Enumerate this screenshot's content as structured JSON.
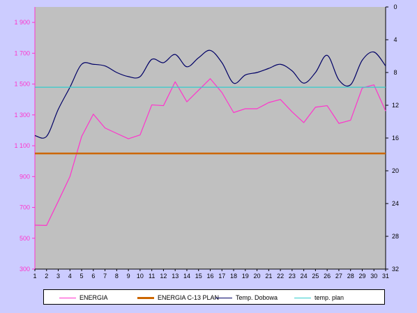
{
  "chart_data": {
    "type": "line",
    "x": [
      1,
      2,
      3,
      4,
      5,
      6,
      7,
      8,
      9,
      10,
      11,
      12,
      13,
      14,
      15,
      16,
      17,
      18,
      19,
      20,
      21,
      22,
      23,
      24,
      25,
      26,
      27,
      28,
      29,
      30,
      31
    ],
    "y_left": {
      "range": [
        300,
        2000
      ],
      "ticks": [
        300,
        500,
        700,
        900,
        1100,
        1300,
        1500,
        1700,
        1900
      ],
      "tick_labels": [
        "300",
        "500",
        "700",
        "900",
        "1 100",
        "1 300",
        "1 500",
        "1 700",
        "1 900"
      ],
      "color": "#ff33cc"
    },
    "y_right": {
      "range": [
        0,
        32
      ],
      "inverted": true,
      "ticks": [
        0,
        4,
        8,
        12,
        16,
        20,
        24,
        28,
        32
      ],
      "tick_labels": [
        "0",
        "4",
        "8",
        "12",
        "16",
        "20",
        "24",
        "28",
        "32"
      ]
    },
    "x_tick_labels": [
      "1",
      "2",
      "3",
      "4",
      "5",
      "6",
      "7",
      "8",
      "9",
      "10",
      "11",
      "12",
      "13",
      "14",
      "15",
      "16",
      "17",
      "18",
      "19",
      "20",
      "21",
      "22",
      "23",
      "24",
      "25",
      "26",
      "27",
      "28",
      "29",
      "30",
      "31"
    ],
    "series": [
      {
        "name": "ENERGIA",
        "axis": "left",
        "color": "#ff33cc",
        "width": 1.2,
        "smooth": false,
        "values": [
          585,
          583,
          740,
          900,
          1160,
          1305,
          1215,
          1180,
          1145,
          1170,
          1365,
          1360,
          1515,
          1385,
          1460,
          1535,
          1445,
          1315,
          1340,
          1340,
          1380,
          1400,
          1320,
          1250,
          1350,
          1360,
          1245,
          1265,
          1475,
          1495,
          1325
        ]
      },
      {
        "name": "ENERGIA C-13 PLAN",
        "axis": "left",
        "color": "#cc6600",
        "width": 2.5,
        "smooth": false,
        "values": [
          1050,
          1050,
          1050,
          1050,
          1050,
          1050,
          1050,
          1050,
          1050,
          1050,
          1050,
          1050,
          1050,
          1050,
          1050,
          1050,
          1050,
          1050,
          1050,
          1050,
          1050,
          1050,
          1050,
          1050,
          1050,
          1050,
          1050,
          1050,
          1050,
          1050,
          1050
        ]
      },
      {
        "name": "Temp. Dobowa",
        "axis": "right",
        "color": "#000066",
        "width": 1.2,
        "smooth": true,
        "values": [
          15.7,
          15.8,
          12.5,
          9.8,
          7.0,
          7.0,
          7.2,
          8.0,
          8.5,
          8.5,
          6.4,
          6.8,
          5.8,
          7.3,
          6.2,
          5.3,
          6.8,
          9.3,
          8.3,
          8.0,
          7.5,
          7.0,
          7.8,
          9.3,
          8.0,
          5.9,
          8.9,
          9.5,
          6.5,
          5.5,
          7.2
        ]
      },
      {
        "name": "temp. plan",
        "axis": "right",
        "color": "#33cccc",
        "width": 1.2,
        "smooth": false,
        "values": [
          9.8,
          9.8,
          9.8,
          9.8,
          9.8,
          9.8,
          9.8,
          9.8,
          9.8,
          9.8,
          9.8,
          9.8,
          9.8,
          9.8,
          9.8,
          9.8,
          9.8,
          9.8,
          9.8,
          9.8,
          9.8,
          9.8,
          9.8,
          9.8,
          9.8,
          9.8,
          9.8,
          9.8,
          9.8,
          9.8,
          9.8
        ]
      }
    ],
    "legend": {
      "placement": "bottom",
      "items": [
        "ENERGIA",
        "ENERGIA C-13 PLAN",
        "Temp. Dobowa",
        "temp. plan"
      ]
    },
    "plot_background": "#c0c0c0",
    "grid": false
  }
}
